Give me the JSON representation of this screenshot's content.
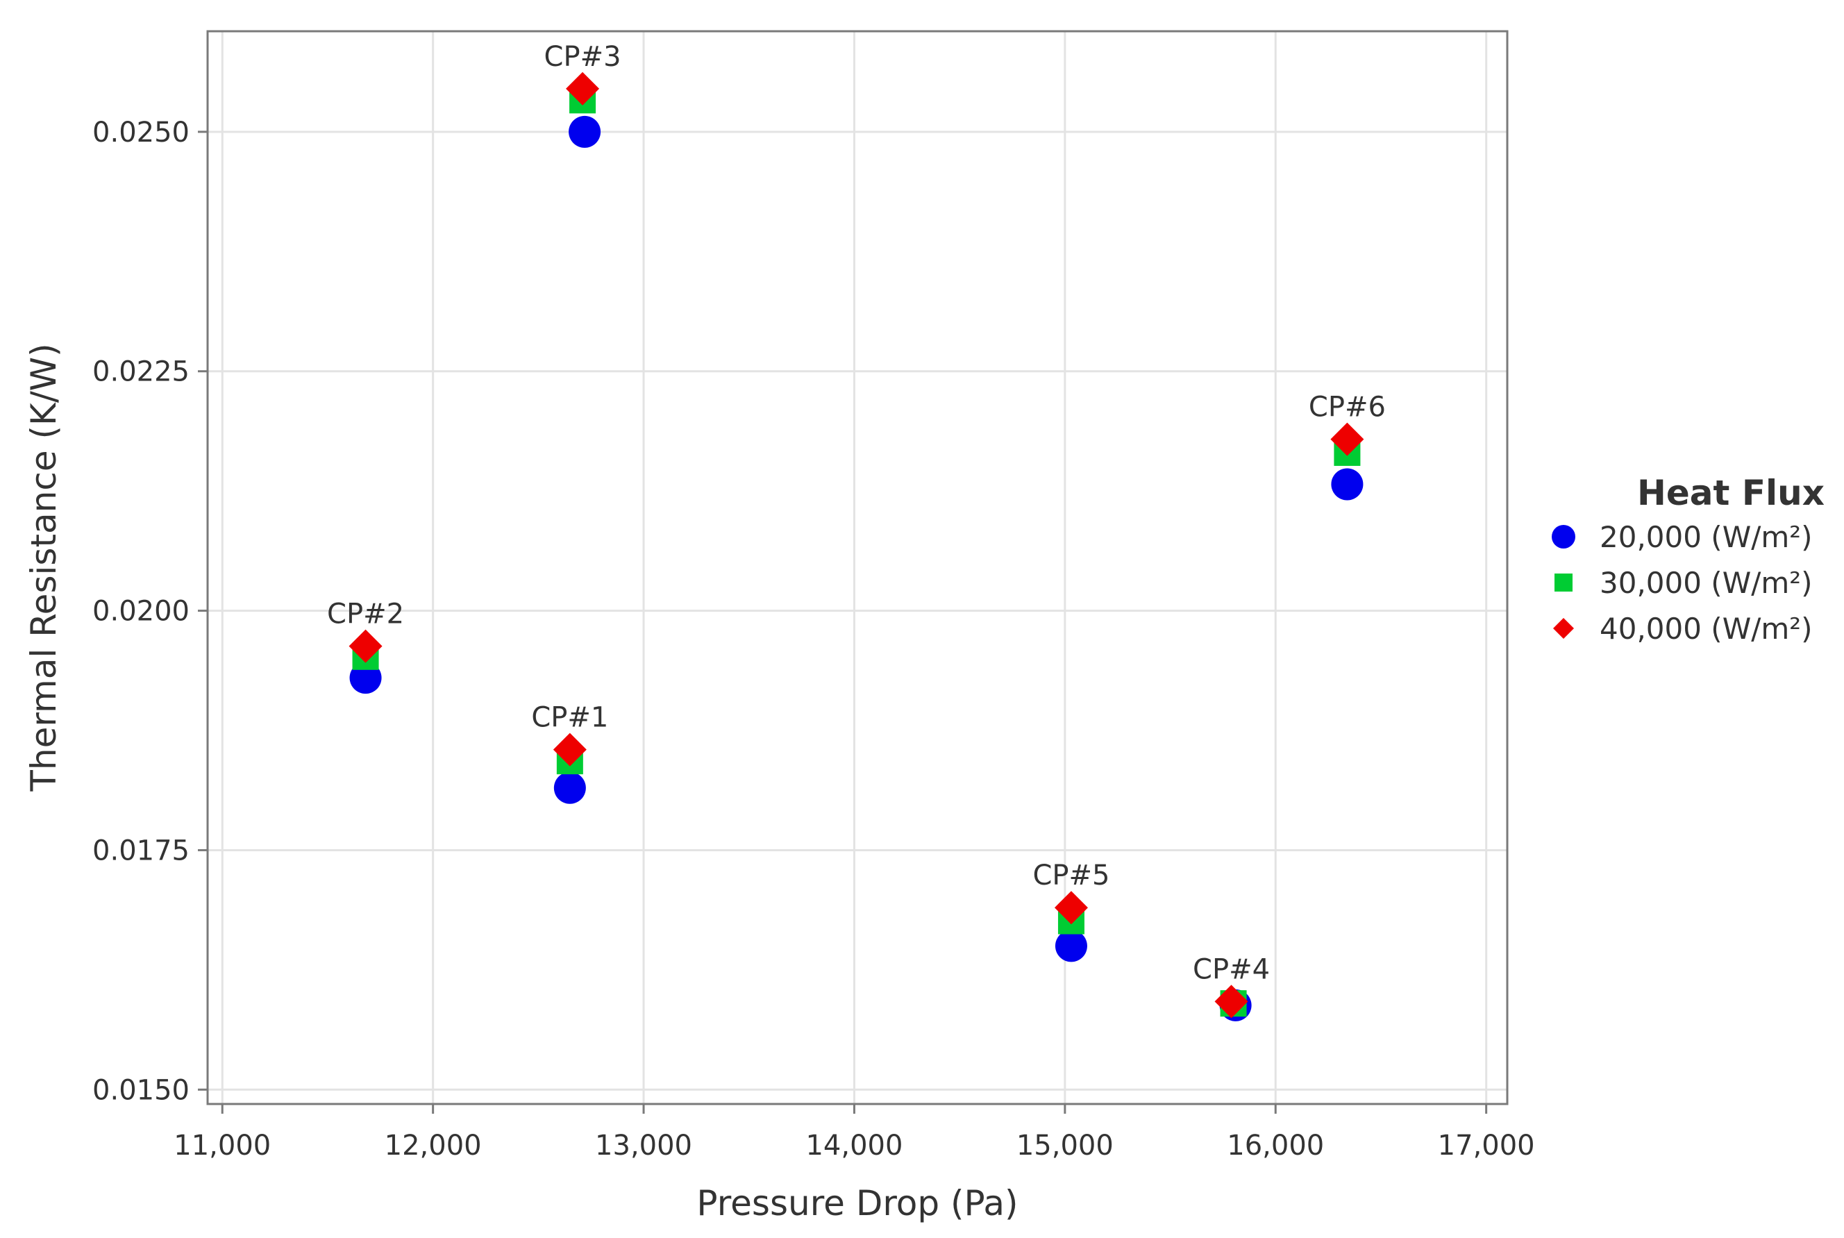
{
  "chart_data": {
    "type": "scatter",
    "xlabel": "Pressure Drop (Pa)",
    "ylabel": "Thermal Resistance (K/W)",
    "xlim": [
      10930,
      17100
    ],
    "ylim": [
      0.01485,
      0.02605
    ],
    "xticks": [
      11000,
      12000,
      13000,
      14000,
      15000,
      16000,
      17000
    ],
    "xtick_labels": [
      "11,000",
      "12,000",
      "13,000",
      "14,000",
      "15,000",
      "16,000",
      "17,000"
    ],
    "yticks": [
      0.015,
      0.0175,
      0.02,
      0.0225,
      0.025
    ],
    "ytick_labels": [
      "0.0150",
      "0.0175",
      "0.0200",
      "0.0225",
      "0.0250"
    ],
    "grid": true,
    "legend": {
      "title": "Heat Flux",
      "position": "right",
      "entries": [
        "20,000 (W/m²)",
        "30,000 (W/m²)",
        "40,000 (W/m²)"
      ]
    },
    "series": [
      {
        "name": "20,000 (W/m²)",
        "marker": "circle",
        "color": "#0000ee",
        "points": [
          {
            "x": 12650,
            "y": 0.01815
          },
          {
            "x": 11680,
            "y": 0.0193
          },
          {
            "x": 12720,
            "y": 0.025
          },
          {
            "x": 15810,
            "y": 0.01588
          },
          {
            "x": 15030,
            "y": 0.0165
          },
          {
            "x": 16340,
            "y": 0.02132
          }
        ]
      },
      {
        "name": "30,000 (W/m²)",
        "marker": "square",
        "color": "#00cc33",
        "points": [
          {
            "x": 12650,
            "y": 0.01843
          },
          {
            "x": 11680,
            "y": 0.01952
          },
          {
            "x": 12710,
            "y": 0.02533
          },
          {
            "x": 15800,
            "y": 0.0159
          },
          {
            "x": 15030,
            "y": 0.01676
          },
          {
            "x": 16340,
            "y": 0.02165
          }
        ]
      },
      {
        "name": "40,000 (W/m²)",
        "marker": "diamond",
        "color": "#ee0000",
        "points": [
          {
            "x": 12650,
            "y": 0.01855
          },
          {
            "x": 11680,
            "y": 0.01963
          },
          {
            "x": 12710,
            "y": 0.02545
          },
          {
            "x": 15790,
            "y": 0.01592
          },
          {
            "x": 15030,
            "y": 0.0169
          },
          {
            "x": 16340,
            "y": 0.02179
          }
        ]
      }
    ],
    "annotations": [
      {
        "text": "CP#1",
        "x": 12650,
        "y": 0.01855
      },
      {
        "text": "CP#2",
        "x": 11680,
        "y": 0.01963
      },
      {
        "text": "CP#3",
        "x": 12710,
        "y": 0.02545
      },
      {
        "text": "CP#4",
        "x": 15790,
        "y": 0.01592
      },
      {
        "text": "CP#5",
        "x": 15030,
        "y": 0.0169
      },
      {
        "text": "CP#6",
        "x": 16340,
        "y": 0.02179
      }
    ]
  }
}
